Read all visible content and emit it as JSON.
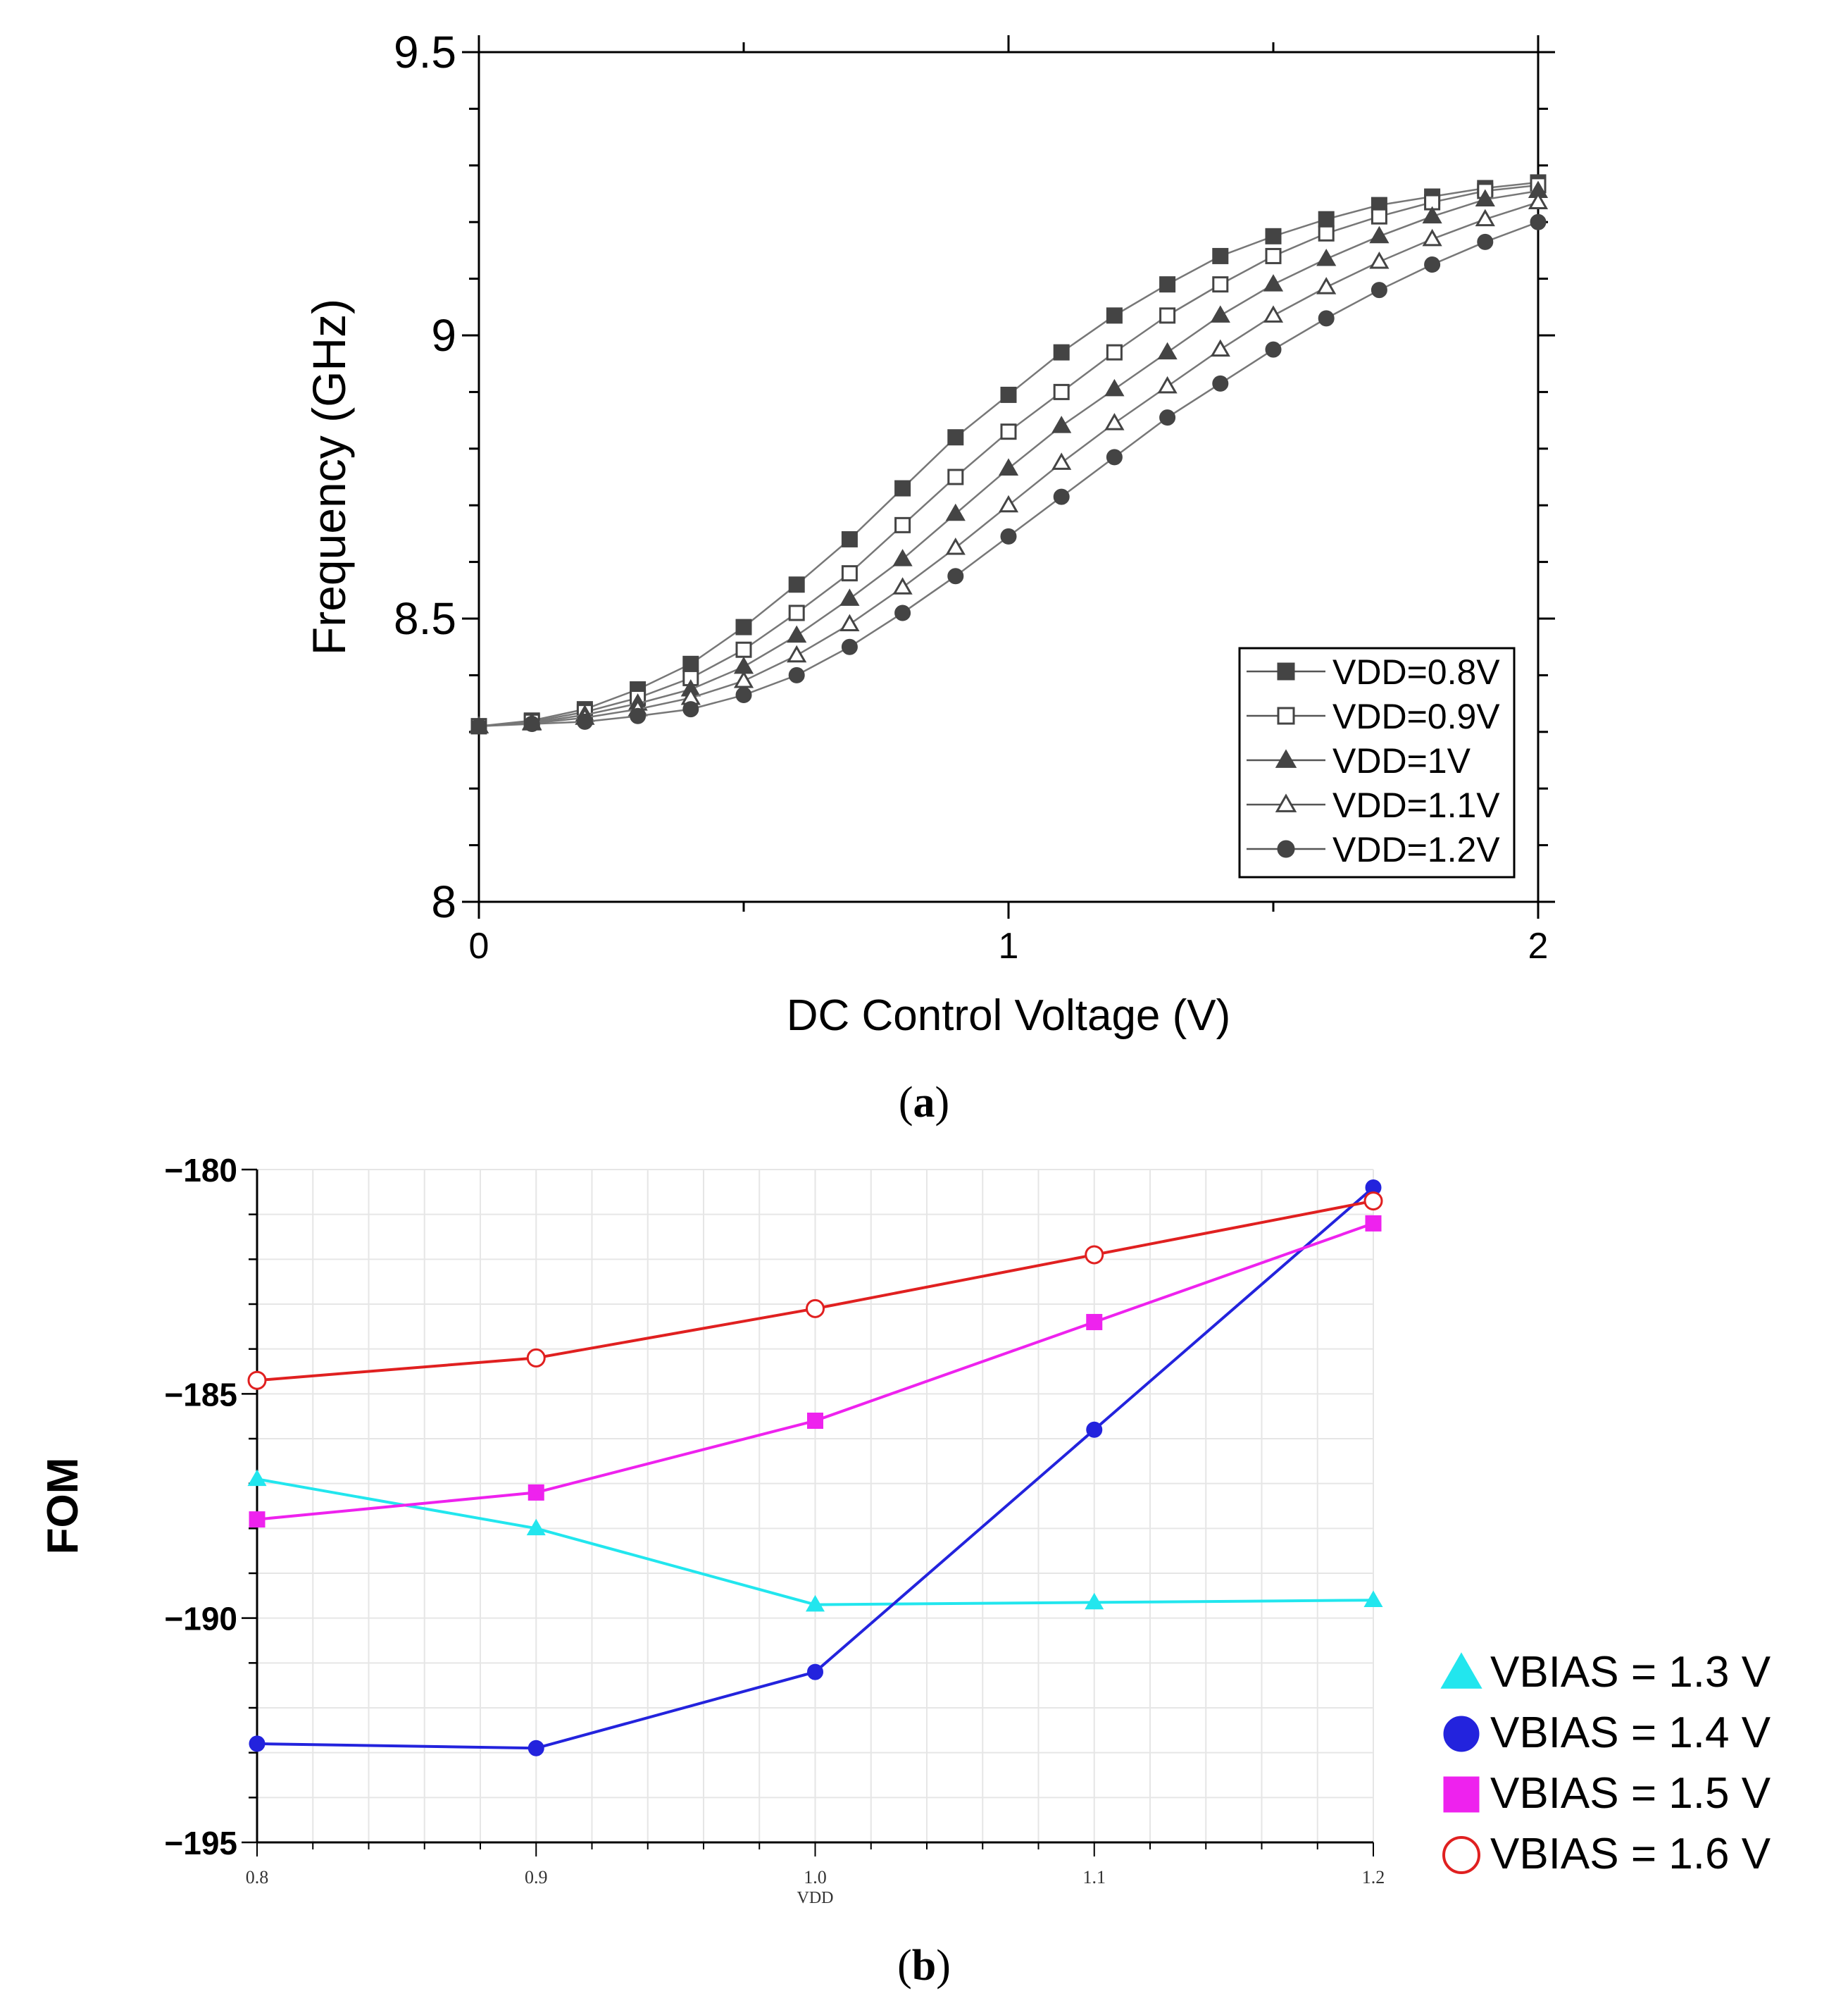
{
  "captions": {
    "a_letter": "a",
    "b_letter": "b"
  },
  "colors": {
    "vbias_1_3": "#22e6ee",
    "vbias_1_4": "#2323dd",
    "vbias_1_5": "#ee22ee",
    "vbias_1_6": "#e02020"
  },
  "chart_data": [
    {
      "id": "a",
      "type": "line",
      "title": "",
      "xlabel": "DC Control Voltage (V)",
      "ylabel": "Frequency (GHz)",
      "xlim": [
        0,
        2
      ],
      "ylim": [
        8,
        9.5
      ],
      "xticks": [
        0,
        1,
        2
      ],
      "xtick_labels": [
        "0",
        "1",
        "2"
      ],
      "yticks": [
        8,
        8.5,
        9,
        9.5
      ],
      "ytick_labels": [
        "8",
        "8.5",
        "9",
        "9.5"
      ],
      "grid": false,
      "legend_position": "bottom-right",
      "x": [
        0,
        0.1,
        0.2,
        0.3,
        0.4,
        0.5,
        0.6,
        0.7,
        0.8,
        0.9,
        1.0,
        1.1,
        1.2,
        1.3,
        1.4,
        1.5,
        1.6,
        1.7,
        1.8,
        1.9,
        2.0
      ],
      "series": [
        {
          "name": "VDD=0.8V",
          "marker": "square-filled",
          "values": [
            8.31,
            8.32,
            8.34,
            8.375,
            8.42,
            8.485,
            8.56,
            8.64,
            8.73,
            8.82,
            8.895,
            8.97,
            9.035,
            9.09,
            9.14,
            9.175,
            9.205,
            9.23,
            9.245,
            9.26,
            9.27
          ]
        },
        {
          "name": "VDD=0.9V",
          "marker": "square-open",
          "values": [
            8.31,
            8.318,
            8.335,
            8.36,
            8.395,
            8.445,
            8.51,
            8.58,
            8.665,
            8.75,
            8.83,
            8.9,
            8.97,
            9.035,
            9.09,
            9.14,
            9.18,
            9.21,
            9.235,
            9.255,
            9.265
          ]
        },
        {
          "name": "VDD=1V",
          "marker": "triangle-filled",
          "values": [
            8.31,
            8.316,
            8.33,
            8.35,
            8.375,
            8.415,
            8.47,
            8.535,
            8.605,
            8.685,
            8.765,
            8.84,
            8.905,
            8.97,
            9.035,
            9.09,
            9.135,
            9.175,
            9.21,
            9.24,
            9.255
          ]
        },
        {
          "name": "VDD=1.1V",
          "marker": "triangle-open",
          "values": [
            8.31,
            8.315,
            8.325,
            8.34,
            8.36,
            8.39,
            8.435,
            8.49,
            8.555,
            8.625,
            8.7,
            8.775,
            8.845,
            8.91,
            8.975,
            9.035,
            9.085,
            9.13,
            9.17,
            9.205,
            9.235
          ]
        },
        {
          "name": "VDD=1.2V",
          "marker": "circle-filled",
          "values": [
            8.31,
            8.314,
            8.318,
            8.328,
            8.34,
            8.365,
            8.4,
            8.45,
            8.51,
            8.575,
            8.645,
            8.715,
            8.785,
            8.855,
            8.915,
            8.975,
            9.03,
            9.08,
            9.125,
            9.165,
            9.2
          ]
        }
      ]
    },
    {
      "id": "b",
      "type": "line",
      "title": "",
      "xlabel": "VDD",
      "ylabel": "FOM",
      "xlim": [
        0.8,
        1.2
      ],
      "ylim": [
        -195,
        -180
      ],
      "xticks": [
        0.8,
        0.9,
        1.0,
        1.1,
        1.2
      ],
      "xtick_labels": [
        "0.8",
        "0.9",
        "1.0",
        "1.1",
        "1.2"
      ],
      "yticks": [
        -180,
        -185,
        -190,
        -195
      ],
      "ytick_labels": [
        "−180",
        "−185",
        "−190",
        "−195"
      ],
      "grid": true,
      "legend_position": "right",
      "x": [
        0.8,
        0.9,
        1.0,
        1.1,
        1.2
      ],
      "series": [
        {
          "name": "VBIAS = 1.3 V",
          "marker": "triangle-filled",
          "color": "#22e6ee",
          "values": [
            -186.9,
            -188.0,
            -189.7,
            -189.65,
            -189.6
          ]
        },
        {
          "name": "VBIAS = 1.4 V",
          "marker": "circle-filled",
          "color": "#2323dd",
          "values": [
            -192.8,
            -192.9,
            -191.2,
            -185.8,
            -180.4
          ]
        },
        {
          "name": "VBIAS = 1.5 V",
          "marker": "square-filled",
          "color": "#ee22ee",
          "values": [
            -187.8,
            -187.2,
            -185.6,
            -183.4,
            -181.2
          ]
        },
        {
          "name": "VBIAS = 1.6 V",
          "marker": "circle-open",
          "color": "#e02020",
          "values": [
            -184.7,
            -184.2,
            -183.1,
            -181.9,
            -180.7
          ]
        }
      ]
    }
  ]
}
